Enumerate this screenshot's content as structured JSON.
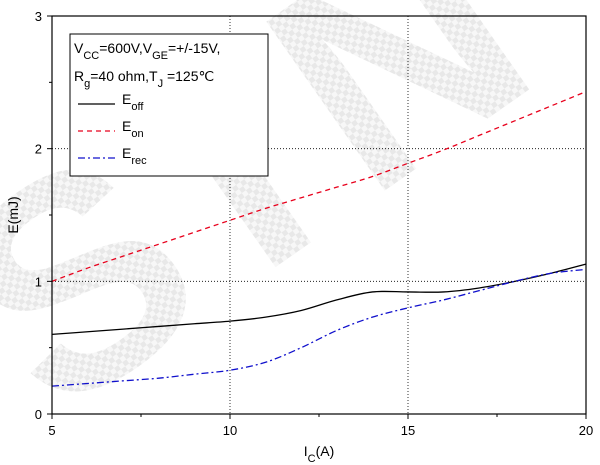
{
  "chart_data": {
    "type": "line",
    "xlabel": {
      "main": "I",
      "sub": "C",
      "suffix": "(A)"
    },
    "ylabel": "E(mJ)",
    "xlim": [
      5,
      20
    ],
    "ylim": [
      0,
      3
    ],
    "x_ticks": [
      "5",
      "10",
      "15",
      "20"
    ],
    "y_ticks": [
      "0",
      "1",
      "2",
      "3"
    ],
    "grid": "dotted",
    "legend_position": "top-left",
    "conditions": [
      {
        "segments": [
          {
            "t": "V"
          },
          {
            "t": "CC",
            "sub": true
          },
          {
            "t": "=600V,V"
          },
          {
            "t": "GE",
            "sub": true
          },
          {
            "t": "=+/-15V,"
          }
        ]
      },
      {
        "segments": [
          {
            "t": "R"
          },
          {
            "t": "g",
            "sub": true
          },
          {
            "t": "=40 ohm,T"
          },
          {
            "t": "J",
            "sub": true
          },
          {
            "t": " =125℃"
          }
        ]
      }
    ],
    "series": [
      {
        "name": "off",
        "color": "#000000",
        "dash": "solid",
        "x": [
          5,
          6,
          7,
          8,
          9,
          10,
          11,
          12,
          13,
          14,
          15,
          16,
          17,
          18,
          19,
          20
        ],
        "y": [
          0.6,
          0.62,
          0.64,
          0.66,
          0.68,
          0.7,
          0.73,
          0.78,
          0.86,
          0.92,
          0.92,
          0.92,
          0.95,
          1.0,
          1.06,
          1.13
        ]
      },
      {
        "name": "on",
        "color": "#e8001c",
        "dash": "dashed",
        "x": [
          5,
          6,
          7,
          8,
          9,
          10,
          11,
          12,
          13,
          14,
          15,
          16,
          17,
          18,
          19,
          20
        ],
        "y": [
          1.0,
          1.1,
          1.19,
          1.28,
          1.37,
          1.46,
          1.55,
          1.63,
          1.71,
          1.79,
          1.89,
          1.99,
          2.1,
          2.21,
          2.32,
          2.43
        ]
      },
      {
        "name": "rec",
        "color": "#1010cc",
        "dash": "dashdot",
        "x": [
          5,
          6,
          7,
          8,
          9,
          10,
          11,
          12,
          13,
          14,
          15,
          16,
          17,
          18,
          19,
          20
        ],
        "y": [
          0.21,
          0.23,
          0.25,
          0.27,
          0.3,
          0.33,
          0.39,
          0.5,
          0.63,
          0.73,
          0.8,
          0.86,
          0.93,
          1.0,
          1.06,
          1.09
        ]
      }
    ],
    "watermark": "STN"
  }
}
